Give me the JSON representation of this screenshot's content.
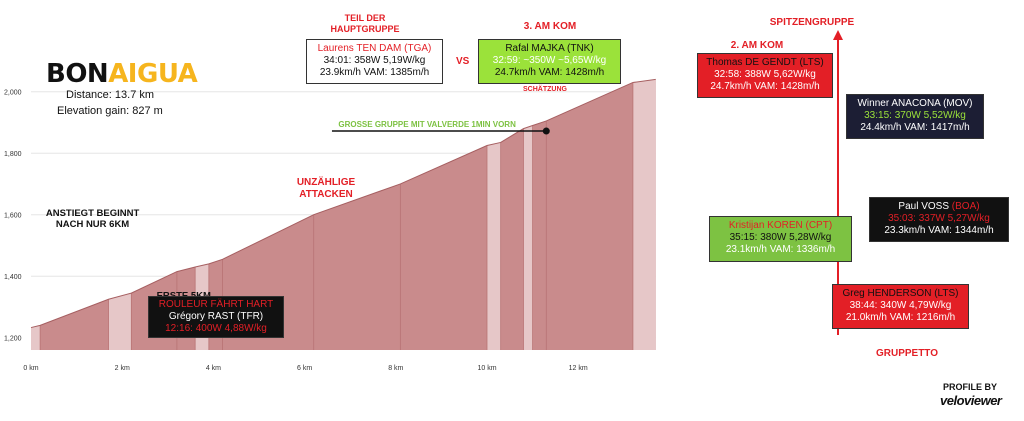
{
  "brand": {
    "part1": "BON",
    "part2": "AIGUA"
  },
  "stats": {
    "distance": "Distance: 13.7 km",
    "elevation": "Elevation gain: 827 m"
  },
  "colors": {
    "profile": "#c98b8c",
    "profile_dark": "#b87374",
    "steep": "#e6c7c8",
    "red": "#e31f26",
    "green": "#9be23a",
    "dark": "#1c1e34",
    "line_green": "#7dc242"
  },
  "chart_data": {
    "type": "area",
    "title": "",
    "xlabel": "",
    "ylabel": "",
    "xlim": [
      0,
      13.7
    ],
    "ylim": [
      1160,
      2060
    ],
    "x_ticks": [
      {
        "v": 0,
        "label": "0 km"
      },
      {
        "v": 2,
        "label": "2 km"
      },
      {
        "v": 4,
        "label": "4 km"
      },
      {
        "v": 6,
        "label": "6 km"
      },
      {
        "v": 8,
        "label": "8 km"
      },
      {
        "v": 10,
        "label": "10 km"
      },
      {
        "v": 12,
        "label": "12 km"
      }
    ],
    "y_ticks": [
      {
        "v": 1200,
        "label": "1,200"
      },
      {
        "v": 1400,
        "label": "1,400"
      },
      {
        "v": 1600,
        "label": "1,600"
      },
      {
        "v": 1800,
        "label": "1,800"
      },
      {
        "v": 2000,
        "label": "2,000"
      }
    ],
    "profile_x": [
      0,
      0.2,
      1.7,
      2.2,
      3.2,
      3.6,
      3.9,
      4.2,
      6.2,
      8.1,
      10.0,
      10.3,
      10.8,
      11.0,
      11.3,
      13.2,
      13.7
    ],
    "profile_y": [
      1233,
      1240,
      1325,
      1345,
      1415,
      1430,
      1440,
      1455,
      1600,
      1700,
      1825,
      1835,
      1880,
      1890,
      1905,
      2030,
      2040
    ],
    "steep_segments": [
      [
        0,
        0.2
      ],
      [
        1.7,
        2.2
      ],
      [
        3.6,
        3.9
      ],
      [
        10.0,
        10.3
      ],
      [
        10.8,
        11.0
      ],
      [
        13.2,
        13.7
      ]
    ],
    "group_line": {
      "x0": 6.6,
      "x1": 11.3,
      "y": 1872,
      "label": "GROSSE GRUPPE MIT VALVERDE 1MIN VORN"
    },
    "annotations": [
      {
        "text": "ANSTIEGT BEGINNT",
        "x": 1.35,
        "y": 1595
      },
      {
        "text": "NACH NUR 6KM",
        "x": 1.35,
        "y": 1560
      },
      {
        "text": "ERSTE 5KM",
        "x": 3.35,
        "y": 1328
      }
    ]
  },
  "annot_red": {
    "line1": "UNZÄHLIGE",
    "line2": "ATTACKEN"
  },
  "headings": {
    "hauptgruppe1": "TEIL DER",
    "hauptgruppe2": "HAUPTGRUPPE",
    "am_kom3": "3. AM KOM",
    "am_kom2": "2. AM KOM",
    "spitzengruppe": "SPITZENGRUPPE",
    "gruppetto": "GRUPPETTO",
    "vs": "VS",
    "schaetzung": "SCHÄTZUNG"
  },
  "riders": {
    "tendam": {
      "name": "Laurens TEN DAM (TGA)",
      "l2": "34:01: 358W 5,19W/kg",
      "l3": "23.9km/h VAM: 1385m/h"
    },
    "majka": {
      "name": "Rafal MAJKA (TNK)",
      "l2": "32:59: ~350W ~5,65W/kg",
      "l3": "24.7km/h VAM: 1428m/h"
    },
    "degendt": {
      "name": "Thomas DE GENDT (LTS)",
      "l2": "32:58: 388W 5,62W/kg",
      "l3": "24.7km/h VAM: 1428m/h"
    },
    "anacona": {
      "name": "Winner ANACONA (MOV)",
      "l2": "33:15: 370W 5,52W/kg",
      "l3": "24.4km/h VAM: 1417m/h"
    },
    "voss": {
      "name": "Paul VOSS",
      "team": "(BOA)",
      "l2": "35:03: 337W 5,27W/kg",
      "l3": "23.3km/h VAM: 1344m/h"
    },
    "koren": {
      "name": "Kristijan KOREN (CPT)",
      "l2": "35:15: 380W 5,28W/kg",
      "l3": "23.1km/h VAM: 1336m/h"
    },
    "henderson": {
      "name": "Greg HENDERSON (LTS)",
      "l2": "38:44: 340W 4,79W/kg",
      "l3": "21.0km/h VAM: 1216m/h"
    },
    "rast": {
      "tag": "ROULEUR  FÄHRT HART",
      "name": "Grégory RAST (TFR)",
      "l2": "12:16: 400W 4,88W/kg"
    }
  },
  "footer": {
    "profile_by": "PROFILE BY",
    "brand": "veloviewer"
  }
}
